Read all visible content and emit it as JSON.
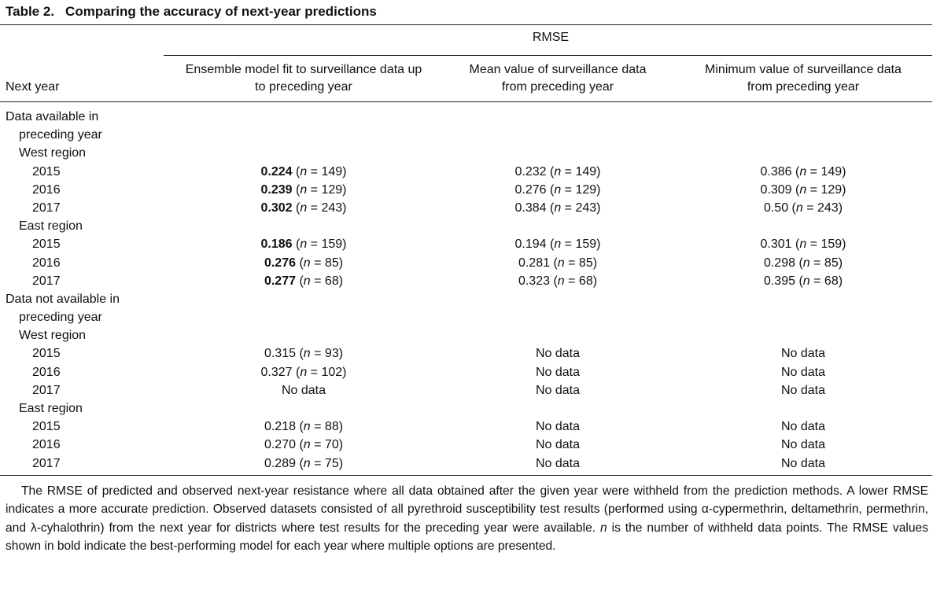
{
  "title": {
    "label": "Table 2.",
    "text": "Comparing the accuracy of next-year predictions"
  },
  "header": {
    "rmse": "RMSE",
    "next_year": "Next year",
    "col1_line1": "Ensemble model fit to surveillance data up",
    "col1_line2": "to preceding year",
    "col2_line1": "Mean value of surveillance data",
    "col2_line2": "from preceding year",
    "col3_line1": "Minimum value of surveillance data",
    "col3_line2": "from preceding year"
  },
  "rows": [
    {
      "type": "group",
      "text": "Data available in"
    },
    {
      "type": "group_cont",
      "text": "preceding year"
    },
    {
      "type": "region",
      "text": "West region"
    },
    {
      "type": "data",
      "year": "2015",
      "c1_val": "0.224",
      "c1_n": "149",
      "c1_bold": true,
      "c2_val": "0.232",
      "c2_n": "149",
      "c3_val": "0.386",
      "c3_n": "149"
    },
    {
      "type": "data",
      "year": "2016",
      "c1_val": "0.239",
      "c1_n": "129",
      "c1_bold": true,
      "c2_val": "0.276",
      "c2_n": "129",
      "c3_val": "0.309",
      "c3_n": "129"
    },
    {
      "type": "data",
      "year": "2017",
      "c1_val": "0.302",
      "c1_n": "243",
      "c1_bold": true,
      "c2_val": "0.384",
      "c2_n": "243",
      "c3_val": "0.50",
      "c3_n": "243"
    },
    {
      "type": "region",
      "text": "East region"
    },
    {
      "type": "data",
      "year": "2015",
      "c1_val": "0.186",
      "c1_n": "159",
      "c1_bold": true,
      "c2_val": "0.194",
      "c2_n": "159",
      "c3_val": "0.301",
      "c3_n": "159"
    },
    {
      "type": "data",
      "year": "2016",
      "c1_val": "0.276",
      "c1_n": "85",
      "c1_bold": true,
      "c2_val": "0.281",
      "c2_n": "85",
      "c3_val": "0.298",
      "c3_n": "85"
    },
    {
      "type": "data",
      "year": "2017",
      "c1_val": "0.277",
      "c1_n": "68",
      "c1_bold": true,
      "c2_val": "0.323",
      "c2_n": "68",
      "c3_val": "0.395",
      "c3_n": "68"
    },
    {
      "type": "group",
      "text": "Data not available in"
    },
    {
      "type": "group_cont",
      "text": "preceding year"
    },
    {
      "type": "region",
      "text": "West region"
    },
    {
      "type": "data",
      "year": "2015",
      "c1_val": "0.315",
      "c1_n": "93",
      "c1_bold": false,
      "c2_text": "No data",
      "c3_text": "No data"
    },
    {
      "type": "data",
      "year": "2016",
      "c1_val": "0.327",
      "c1_n": "102",
      "c1_bold": false,
      "c2_text": "No data",
      "c3_text": "No data"
    },
    {
      "type": "data",
      "year": "2017",
      "c1_text": "No data",
      "c2_text": "No data",
      "c3_text": "No data"
    },
    {
      "type": "region",
      "text": "East region"
    },
    {
      "type": "data",
      "year": "2015",
      "c1_val": "0.218",
      "c1_n": "88",
      "c1_bold": false,
      "c2_text": "No data",
      "c3_text": "No data"
    },
    {
      "type": "data",
      "year": "2016",
      "c1_val": "0.270",
      "c1_n": "70",
      "c1_bold": false,
      "c2_text": "No data",
      "c3_text": "No data"
    },
    {
      "type": "data",
      "year": "2017",
      "c1_val": "0.289",
      "c1_n": "75",
      "c1_bold": false,
      "c2_text": "No data",
      "c3_text": "No data"
    }
  ],
  "n_prefix_open": "(",
  "n_symbol": "n",
  "n_equals": " = ",
  "n_close": ")",
  "footnote": {
    "part1": "The RMSE of predicted and observed next-year resistance where all data obtained after the given year were withheld from the prediction methods. A lower RMSE indicates a more accurate prediction. Observed datasets consisted of all pyrethroid susceptibility test results (performed using α-cypermethrin, deltamethrin, permethrin, and λ-cyhalothrin) from the next year for districts where test results for the preceding year were available. ",
    "n_symbol": "n",
    "part2": " is the number of withheld data points. The RMSE values shown in bold indicate the best-performing model for each year where multiple options are presented."
  }
}
